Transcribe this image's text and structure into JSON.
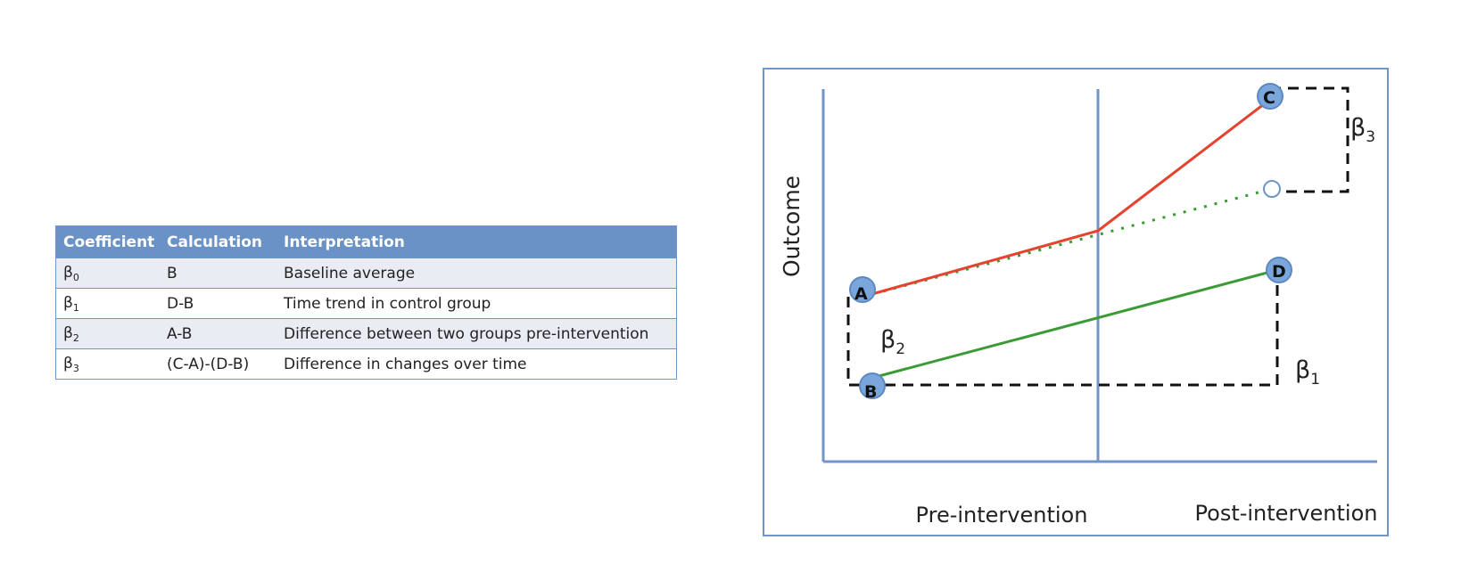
{
  "table": {
    "headers": [
      "Coefficient",
      "Calculation",
      "Interpretation"
    ],
    "rows": [
      {
        "coefficient": "β",
        "sub": "0",
        "calculation": "B",
        "interpretation": "Baseline average"
      },
      {
        "coefficient": "β",
        "sub": "1",
        "calculation": "D-B",
        "interpretation": "Time trend in control group"
      },
      {
        "coefficient": "β",
        "sub": "2",
        "calculation": "A-B",
        "interpretation": "Difference between two groups pre-intervention"
      },
      {
        "coefficient": "β",
        "sub": "3",
        "calculation": "(C-A)-(D-B)",
        "interpretation": "Difference in changes over time"
      }
    ],
    "header_color": "#6a92c6",
    "stripe_color": "#e9ecf3"
  },
  "diagram": {
    "y_axis_label": "Outcome",
    "x_labels": {
      "pre": "Pre-intervention",
      "post": "Post-intervention"
    },
    "points": {
      "A": "A",
      "B": "B",
      "C": "C",
      "D": "D"
    },
    "betas": {
      "b1": {
        "symbol": "β",
        "sub": "1"
      },
      "b2": {
        "symbol": "β",
        "sub": "2"
      },
      "b3": {
        "symbol": "β",
        "sub": "3"
      }
    },
    "colors": {
      "treatment_line": "#e5432f",
      "control_line": "#3a9a35",
      "counterfactual_line": "#3a9a35",
      "axis": "#7195c8",
      "frame": "#7195c8",
      "point_fill": "#7ba6dc",
      "dashed": "#111111"
    }
  }
}
